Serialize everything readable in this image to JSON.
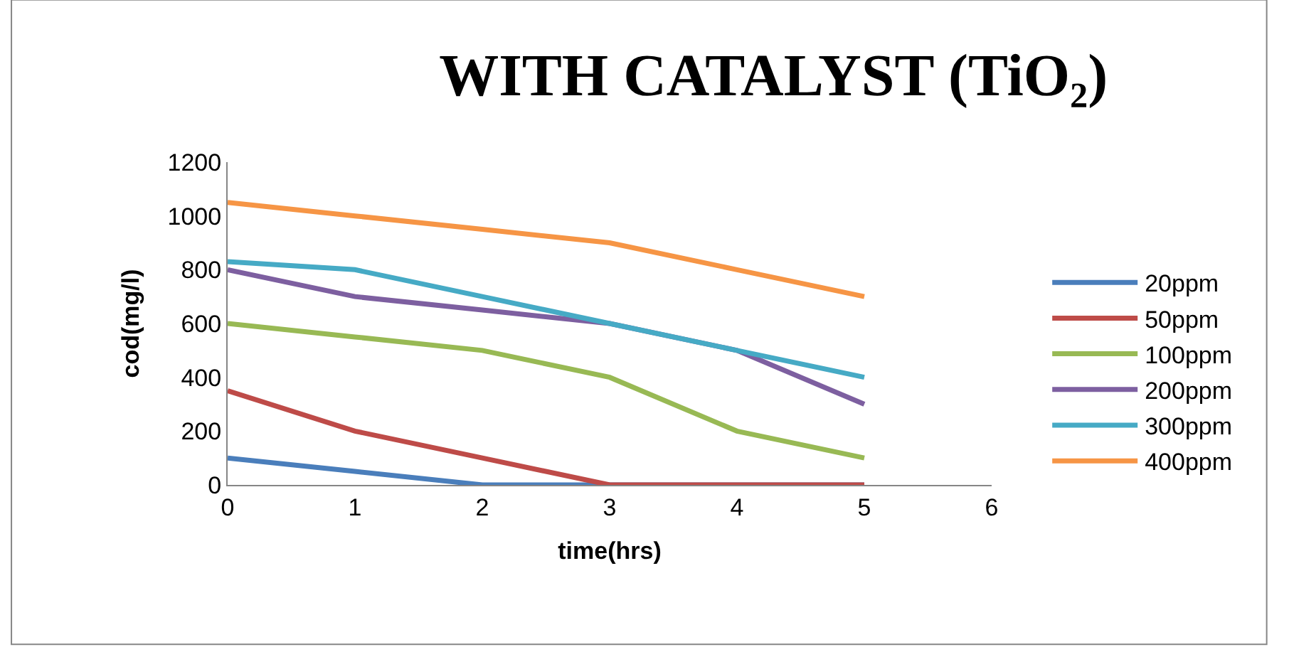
{
  "chart_data": {
    "type": "line",
    "title": "WITH CATALYST (TiO₂)",
    "xlabel": "time(hrs)",
    "ylabel": "cod(mg/l)",
    "x": [
      0,
      1,
      2,
      3,
      4,
      5
    ],
    "xlim": [
      0,
      6
    ],
    "xticks": [
      0,
      1,
      2,
      3,
      4,
      5,
      6
    ],
    "ylim": [
      0,
      1200
    ],
    "yticks": [
      0,
      200,
      400,
      600,
      800,
      1000,
      1200
    ],
    "legend": "right",
    "marker": "none",
    "series": [
      {
        "name": "20ppm",
        "color": "#4a7ebb",
        "values": [
          100,
          50,
          0,
          0,
          0,
          0
        ]
      },
      {
        "name": "50ppm",
        "color": "#be4b48",
        "values": [
          350,
          200,
          100,
          0,
          0,
          0
        ]
      },
      {
        "name": "100ppm",
        "color": "#98b954",
        "values": [
          600,
          550,
          500,
          400,
          200,
          100
        ]
      },
      {
        "name": "200ppm",
        "color": "#7d5fa0",
        "values": [
          800,
          700,
          650,
          600,
          500,
          300
        ]
      },
      {
        "name": "300ppm",
        "color": "#46aac5",
        "values": [
          830,
          800,
          700,
          600,
          500,
          400
        ]
      },
      {
        "name": "400ppm",
        "color": "#f69545",
        "values": [
          1050,
          1000,
          950,
          900,
          800,
          700
        ]
      }
    ]
  }
}
